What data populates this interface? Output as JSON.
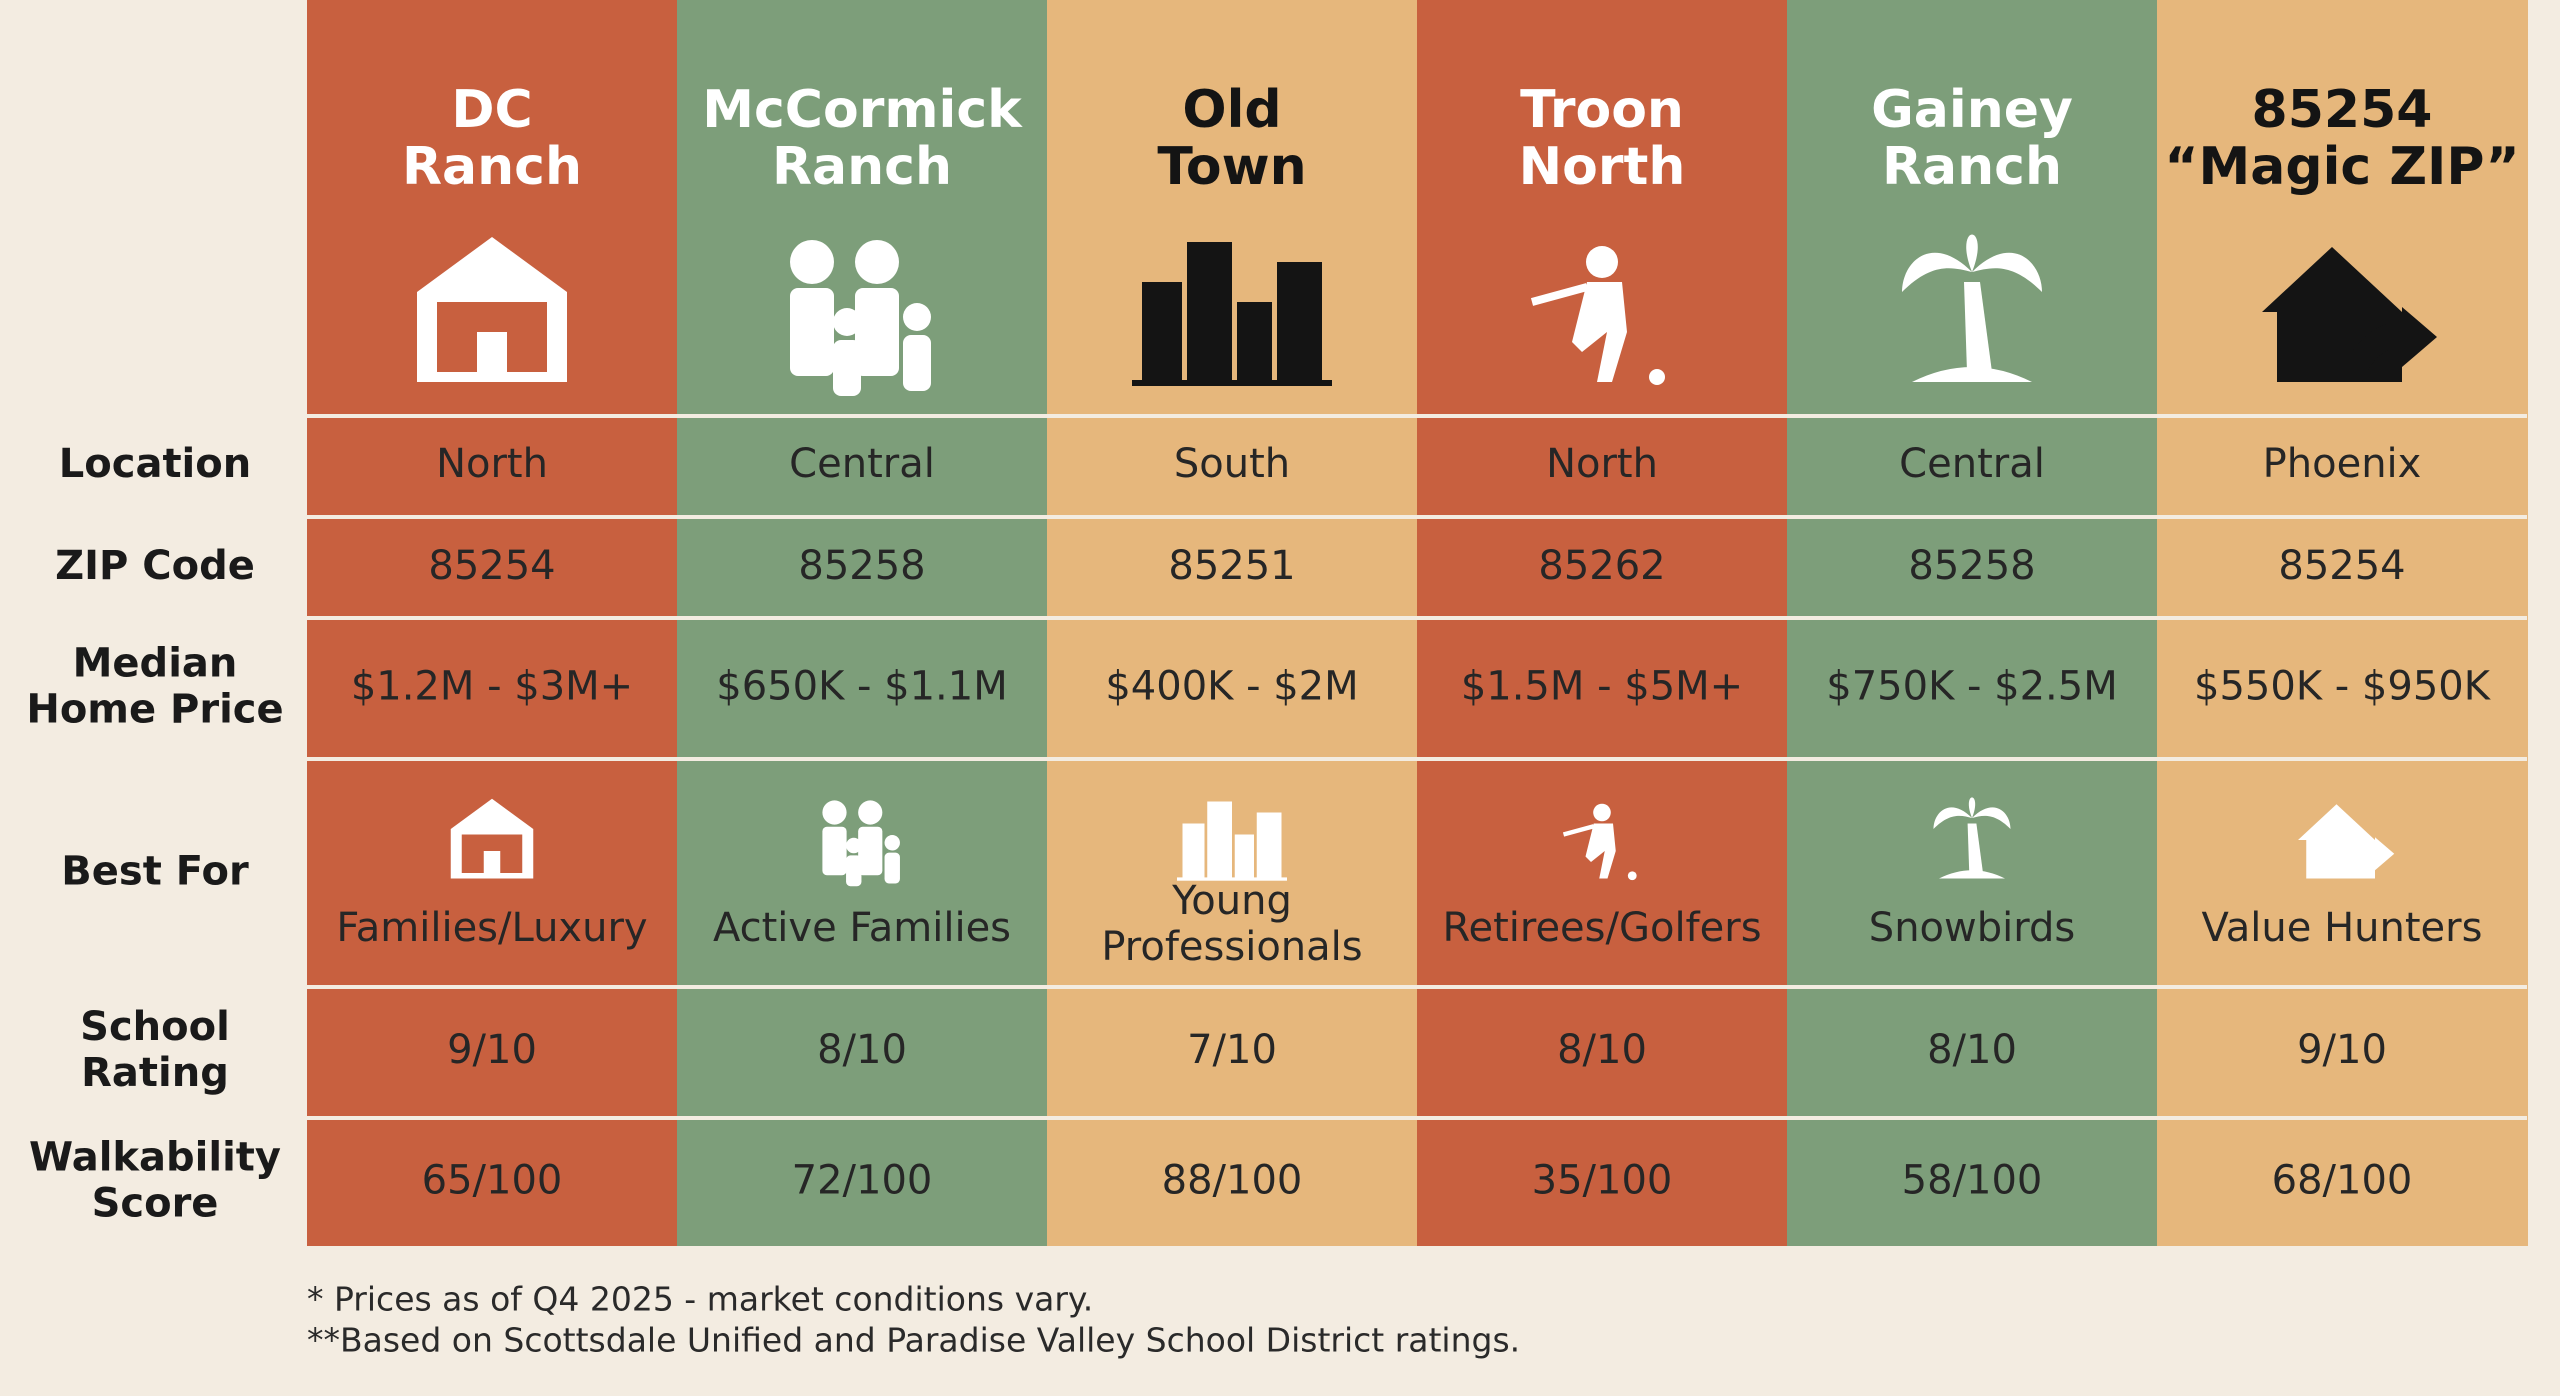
{
  "table": {
    "header": [
      [
        "DC",
        "Ranch"
      ],
      [
        "McCormick",
        "Ranch"
      ],
      [
        "Old",
        "Town"
      ],
      [
        "Troon",
        "North"
      ],
      [
        "Gainey",
        "Ranch"
      ],
      [
        "85254",
        "“Magic ZIP”"
      ]
    ],
    "rows": [
      {
        "label": [
          "Location"
        ],
        "cells": [
          [
            "North"
          ],
          [
            "Central"
          ],
          [
            "South"
          ],
          [
            "North"
          ],
          [
            "Central"
          ],
          [
            "Phoenix"
          ]
        ]
      },
      {
        "label": [
          "ZIP Code"
        ],
        "cells": [
          [
            "85254"
          ],
          [
            "85258"
          ],
          [
            "85251"
          ],
          [
            "85262"
          ],
          [
            "85258"
          ],
          [
            "85254"
          ]
        ]
      },
      {
        "label": [
          "Median",
          "Home Price"
        ],
        "cells": [
          [
            "$1.2M - $3M+"
          ],
          [
            "$650K - $1.1M"
          ],
          [
            "$400K - $2M"
          ],
          [
            "$1.5M - $5M+"
          ],
          [
            "$750K - $2.5M"
          ],
          [
            "$550K - $950K"
          ]
        ]
      },
      {
        "label": [
          "Best For"
        ],
        "cells": [
          [
            "Families/Luxury"
          ],
          [
            "Active Families"
          ],
          [
            "Young",
            "Professionals"
          ],
          [
            "Retirees/Golfers"
          ],
          [
            "Snowbirds"
          ],
          [
            "Value Hunters"
          ]
        ]
      },
      {
        "label": [
          "School",
          "Rating"
        ],
        "cells": [
          [
            "9/10"
          ],
          [
            "8/10"
          ],
          [
            "7/10"
          ],
          [
            "8/10"
          ],
          [
            "8/10"
          ],
          [
            "9/10"
          ]
        ]
      },
      {
        "label": [
          "Walkability",
          "Score"
        ],
        "cells": [
          [
            "65/100"
          ],
          [
            "72/100"
          ],
          [
            "88/100"
          ],
          [
            "35/100"
          ],
          [
            "58/100"
          ],
          [
            "68/100"
          ]
        ]
      }
    ]
  },
  "footnotes": [
    "* Prices as of Q4 2025 - market conditions vary.",
    "**Based on Scottsdale Unified and Paradise Valley School District ratings."
  ]
}
